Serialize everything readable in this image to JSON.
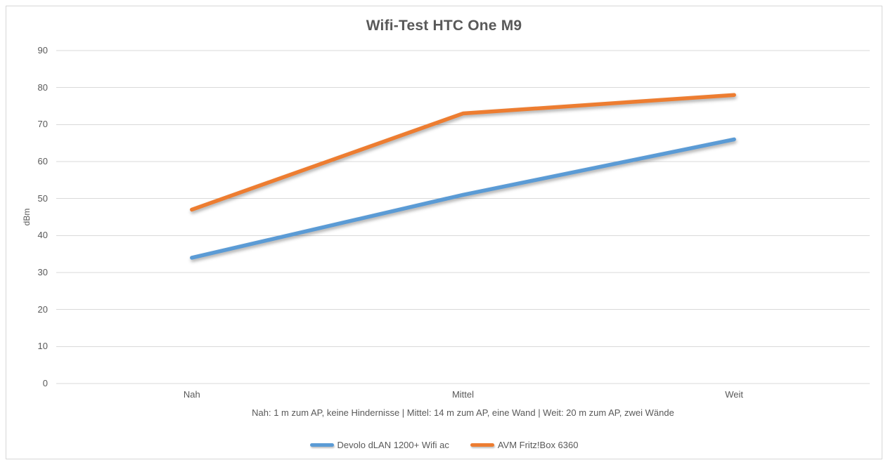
{
  "title": "Wifi-Test HTC One M9",
  "y_axis_label": "dBm",
  "footnote": "Nah: 1 m zum AP, keine Hindernisse | Mittel: 14 m zum AP, eine Wand | Weit: 20 m zum AP, zwei Wände",
  "colors": {
    "series_blue": "#5B9BD5",
    "series_orange": "#ED7D31",
    "gridline": "#D9D9D9",
    "text": "#595959",
    "frame_border": "#D6D6D6",
    "background": "#FFFFFF"
  },
  "chart_data": {
    "type": "line",
    "title": "Wifi-Test HTC One M9",
    "categories": [
      "Nah",
      "Mittel",
      "Weit"
    ],
    "series": [
      {
        "name": "Devolo dLAN 1200+ Wifi ac",
        "color": "#5B9BD5",
        "values": [
          34,
          51,
          66
        ]
      },
      {
        "name": "AVM Fritz!Box 6360",
        "color": "#ED7D31",
        "values": [
          47,
          73,
          78
        ]
      }
    ],
    "xlabel": "Nah: 1 m zum AP, keine Hindernisse | Mittel: 14 m zum AP, eine Wand | Weit: 20 m zum AP, zwei Wände",
    "ylabel": "dBm",
    "ylim": [
      0,
      90
    ],
    "y_ticks": [
      90,
      80,
      70,
      60,
      50,
      40,
      30,
      20,
      10,
      0
    ],
    "grid": true,
    "legend_position": "bottom"
  }
}
